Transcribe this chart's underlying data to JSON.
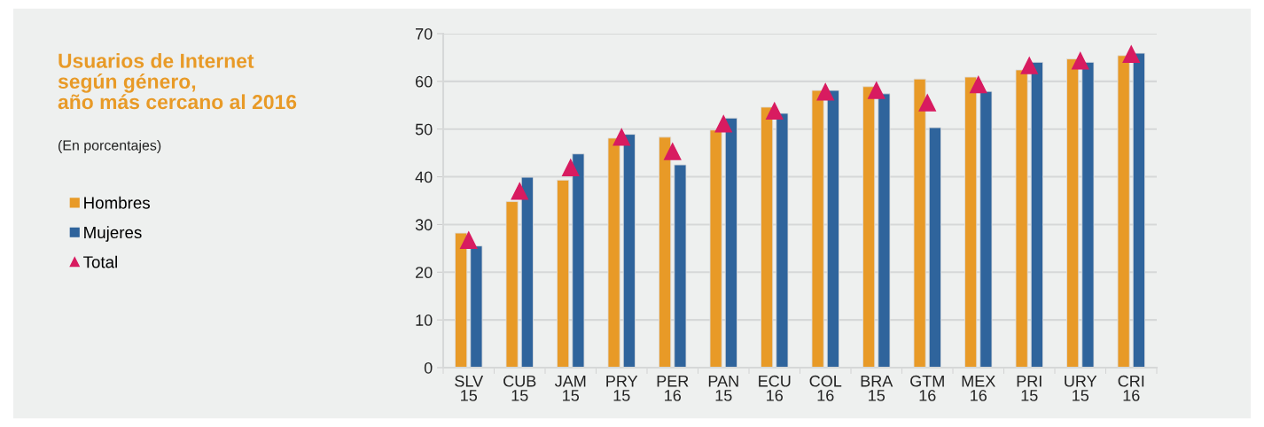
{
  "chart_data": {
    "type": "bar",
    "title": "Usuarios de Internet\nsegún género,\naño más cercano al 2016",
    "subtitle": "(En porcentajes)",
    "categories": [
      "SLV\n15",
      "CUB\n15",
      "JAM\n15",
      "PRY\n15",
      "PER\n16",
      "PAN\n15",
      "ECU\n16",
      "COL\n16",
      "BRA\n15",
      "GTM\n16",
      "MEX\n16",
      "PRI\n15",
      "URY\n15",
      "CRI\n16"
    ],
    "series": [
      {
        "name": "Hombres",
        "color": "#e89a27",
        "values": [
          28.2,
          34.8,
          39.3,
          48.1,
          48.3,
          49.8,
          54.6,
          58.1,
          58.9,
          60.5,
          60.9,
          62.4,
          64.7,
          65.4
        ]
      },
      {
        "name": "Mujeres",
        "color": "#2f649c",
        "values": [
          25.5,
          39.9,
          44.8,
          48.9,
          42.5,
          52.3,
          53.3,
          58.1,
          57.4,
          50.3,
          57.9,
          64.0,
          64.0,
          65.9
        ]
      },
      {
        "name": "Total",
        "type": "scatter",
        "marker": "triangle",
        "color": "#d81b60",
        "values": [
          26.7,
          37.0,
          41.9,
          48.3,
          45.3,
          51.1,
          53.8,
          57.8,
          58.1,
          55.5,
          59.3,
          63.3,
          64.3,
          65.7
        ]
      }
    ],
    "ylim": [
      0,
      70
    ],
    "yticks": [
      0,
      10,
      20,
      30,
      40,
      50,
      60,
      70
    ],
    "grid": "y",
    "legend": "left"
  }
}
